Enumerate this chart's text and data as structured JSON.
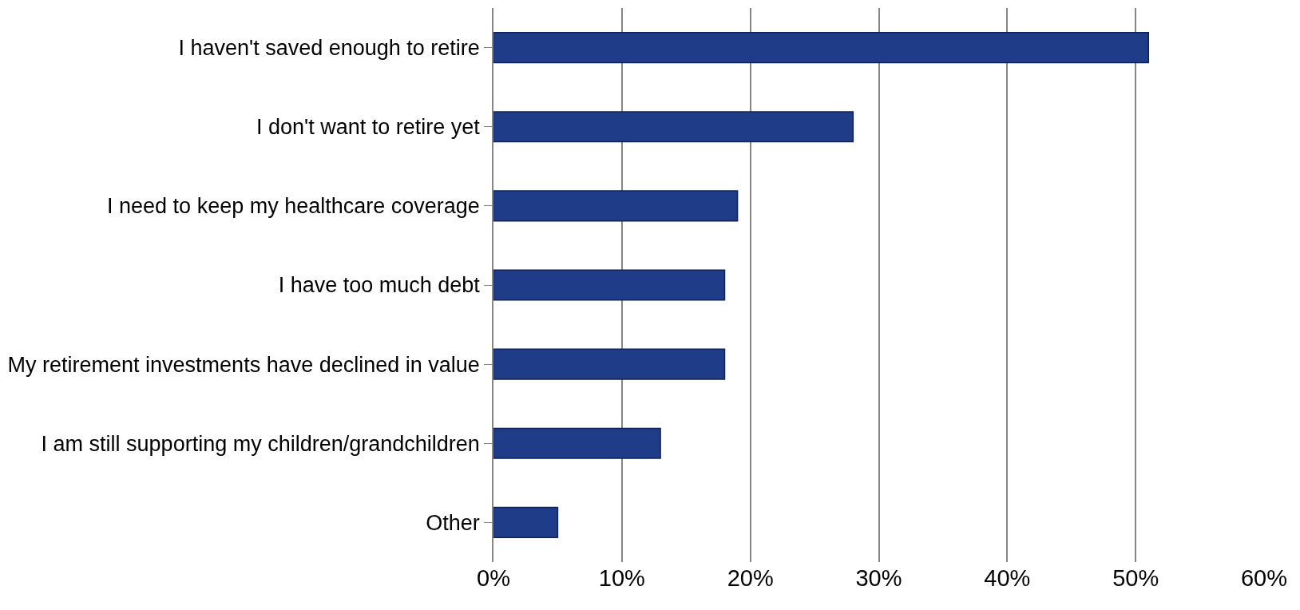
{
  "chart_data": {
    "type": "bar",
    "orientation": "horizontal",
    "categories": [
      "I haven't saved enough to retire",
      "I don't want to retire yet",
      "I need to keep my healthcare coverage",
      "I have too much debt",
      "My retirement investments have declined in value",
      "I am still supporting my children/grandchildren",
      "Other"
    ],
    "values": [
      51,
      28,
      19,
      18,
      18,
      13,
      5
    ],
    "color": "#1f3c88",
    "xlim": [
      0,
      60
    ],
    "xticks": [
      {
        "value": 0,
        "label": "0%"
      },
      {
        "value": 10,
        "label": "10%"
      },
      {
        "value": 20,
        "label": "20%"
      },
      {
        "value": 30,
        "label": "30%"
      },
      {
        "value": 40,
        "label": "40%"
      },
      {
        "value": 50,
        "label": "50%"
      },
      {
        "value": 60,
        "label": "60%"
      }
    ],
    "grid": "x",
    "legend": false
  }
}
